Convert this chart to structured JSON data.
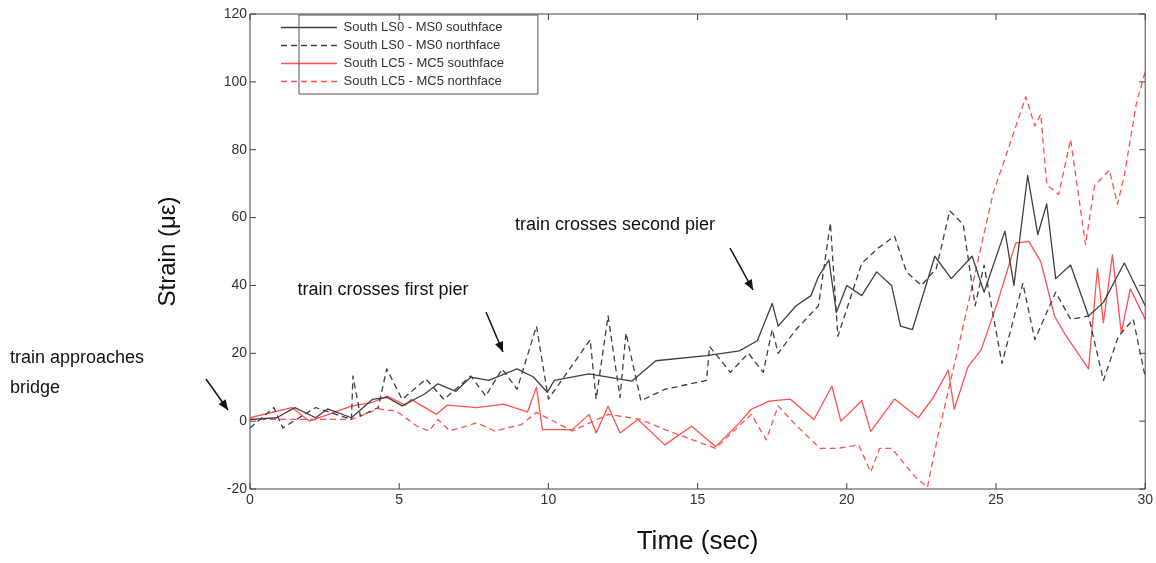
{
  "chart_data": {
    "type": "line",
    "xlabel": "Time (sec)",
    "ylabel": "Strain (με)",
    "xlim": [
      0,
      30
    ],
    "ylim": [
      -20,
      120
    ],
    "xticks": [
      0,
      5,
      10,
      15,
      20,
      25,
      30
    ],
    "yticks": [
      -20,
      0,
      20,
      40,
      60,
      80,
      100,
      120
    ],
    "grid": false,
    "legend": "top left",
    "marker": "none",
    "series": [
      {
        "name": "South LS0 - MS0 southface",
        "color": "#404040",
        "line_style": "solid",
        "x": [
          0,
          0.9,
          1.5,
          2.2,
          2.6,
          3.4,
          4.1,
          4.6,
          5.1,
          5.85,
          6.3,
          6.9,
          7.4,
          8,
          8.95,
          9.5,
          9.96,
          10.2,
          11.36,
          12.8,
          13.6,
          15.3,
          16.4,
          17,
          17.5,
          17.7,
          18.3,
          18.8,
          19.05,
          19.4,
          19.65,
          20,
          20.5,
          21,
          21.5,
          21.8,
          22.2,
          22.95,
          23.5,
          24.2,
          24.6,
          25.3,
          25.6,
          26.06,
          26.4,
          26.7,
          27,
          27.5,
          28.1,
          28.6,
          29.3,
          30
        ],
        "values": [
          0.5,
          1,
          4,
          1,
          3.6,
          1,
          6.4,
          7,
          4.5,
          8,
          11,
          8.8,
          13,
          12,
          15.4,
          13,
          8.5,
          12,
          13.9,
          11.8,
          17.8,
          19.3,
          20.7,
          23.7,
          34.7,
          28,
          34,
          37,
          42.6,
          47.5,
          32,
          40,
          37,
          44,
          40,
          28,
          27,
          48.6,
          42,
          48.6,
          38,
          56,
          40,
          72.4,
          55,
          64,
          42,
          46,
          31,
          35,
          46.6,
          34
        ]
      },
      {
        "name": "South LS0 - MS0 northface",
        "color": "#404040",
        "line_style": "dashed",
        "x": [
          0,
          0.8,
          1.1,
          2.2,
          3.4,
          3.45,
          3.7,
          4.3,
          4.58,
          5.1,
          5.9,
          6.5,
          7.4,
          7.9,
          8.45,
          8.95,
          9.6,
          10,
          11.4,
          11.6,
          12,
          12.4,
          12.6,
          13.1,
          13.9,
          15.3,
          15.4,
          16.1,
          16.7,
          17.2,
          17.5,
          17.7,
          18.3,
          19.05,
          19.45,
          19.7,
          20.5,
          21.05,
          21.6,
          22,
          22.5,
          23,
          23.45,
          23.9,
          24.3,
          24.6,
          25.2,
          25.9,
          26.3,
          27,
          27.5,
          28.1,
          28.6,
          29.1,
          29.6,
          30
        ],
        "values": [
          -2,
          4,
          -2,
          4,
          0.5,
          13.3,
          1.5,
          4,
          15.4,
          6.4,
          12.4,
          6.4,
          13.3,
          7.4,
          15.4,
          9.4,
          28,
          6.5,
          24,
          6.5,
          31,
          7,
          26,
          6,
          9.4,
          12,
          22,
          14.4,
          20,
          14.4,
          27,
          20,
          27,
          34,
          58.4,
          25,
          46.5,
          51,
          54.5,
          44,
          40,
          45,
          62,
          58,
          34,
          46,
          17,
          40.6,
          24,
          38,
          30,
          31,
          12,
          25,
          30,
          13
        ]
      },
      {
        "name": "South LC5 - MC5 southface",
        "color": "#ff5050",
        "line_style": "solid",
        "x": [
          0,
          1.4,
          2,
          3.4,
          4.1,
          4.6,
          5.2,
          5.4,
          6.25,
          6.6,
          7.6,
          8.5,
          9.3,
          9.6,
          9.8,
          10.8,
          11.36,
          11.6,
          12,
          12.4,
          13,
          13.9,
          14.8,
          15.6,
          16.4,
          16.8,
          17.4,
          18.1,
          18.5,
          18.9,
          19.5,
          19.8,
          20.5,
          20.8,
          21.6,
          22.4,
          22.9,
          23.4,
          23.6,
          24.06,
          24.5,
          25.05,
          25.66,
          26.1,
          26.5,
          26.96,
          27.3,
          28.1,
          28.4,
          28.6,
          28.9,
          29.2,
          29.5,
          30
        ],
        "values": [
          1,
          4,
          0,
          4.4,
          5.5,
          7.4,
          4.7,
          6.4,
          2,
          4.7,
          4,
          5,
          2.7,
          10,
          -2.5,
          -2.5,
          2,
          -3.5,
          4.4,
          -3.5,
          0.5,
          -7,
          -1.5,
          -7.5,
          -0.5,
          3.5,
          5.9,
          6.5,
          3.5,
          0.5,
          10.3,
          0,
          6,
          -3,
          6.5,
          1,
          7,
          15,
          3.5,
          16,
          21,
          35,
          52.5,
          53,
          47,
          31,
          25.8,
          15.4,
          45,
          29,
          49,
          26,
          39,
          30
        ]
      },
      {
        "name": "South LC5 - MC5 northface",
        "color": "#ff5050",
        "line_style": "dashed",
        "x": [
          0,
          3.4,
          4.3,
          4.9,
          5.6,
          6,
          6.3,
          6.7,
          7.6,
          8.2,
          9.1,
          9.6,
          10.8,
          12,
          13.1,
          13.9,
          15.6,
          16.8,
          17.3,
          17.7,
          18.3,
          19.1,
          19.7,
          20.4,
          20.8,
          21.1,
          21.5,
          22.3,
          22.7,
          23.05,
          23.95,
          24.9,
          25.4,
          26,
          26.3,
          26.5,
          26.7,
          27.1,
          27.5,
          28,
          28.3,
          28.8,
          29.07,
          29.3,
          29.7,
          30
        ],
        "values": [
          0.5,
          0.5,
          3.6,
          3,
          -1.5,
          -2.9,
          0.5,
          -2.9,
          -0.5,
          -2.9,
          -1,
          2.6,
          -2.9,
          2,
          0.5,
          -2.5,
          -8,
          2,
          -5.5,
          4.5,
          -1.2,
          -8,
          -8,
          -7,
          -15,
          -8,
          -8,
          -16.5,
          -19.5,
          -4.5,
          30,
          67,
          80,
          95.6,
          87,
          90.5,
          69.7,
          66.8,
          83,
          52,
          69.4,
          74,
          64,
          72.4,
          93.5,
          103
        ]
      }
    ],
    "annotations": [
      "train approaches bridge",
      "train crosses first pier",
      "train crosses second pier"
    ]
  }
}
